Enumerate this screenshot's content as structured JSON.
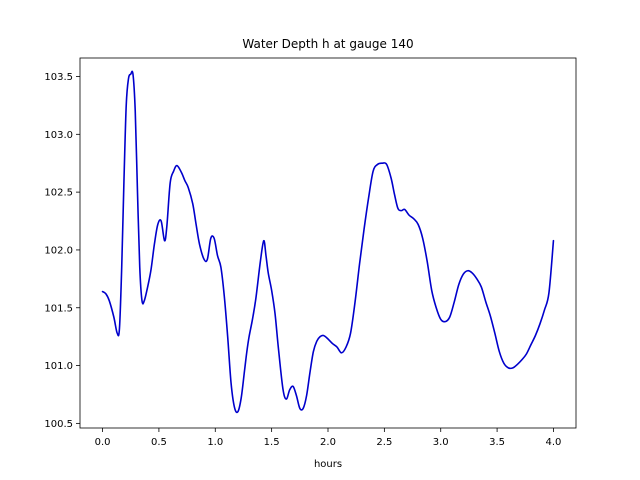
{
  "chart_data": {
    "type": "line",
    "title": "Water Depth h at gauge 140",
    "xlabel": "hours",
    "ylabel": "",
    "xlim": [
      -0.2,
      4.2
    ],
    "ylim": [
      100.46,
      103.66
    ],
    "xticks": [
      0.0,
      0.5,
      1.0,
      1.5,
      2.0,
      2.5,
      3.0,
      3.5,
      4.0
    ],
    "xtick_labels": [
      "0.0",
      "0.5",
      "1.0",
      "1.5",
      "2.0",
      "2.5",
      "3.0",
      "3.5",
      "4.0"
    ],
    "yticks": [
      100.5,
      101.0,
      101.5,
      102.0,
      102.5,
      103.0,
      103.5
    ],
    "ytick_labels": [
      "100.5",
      "101.0",
      "101.5",
      "102.0",
      "102.5",
      "103.0",
      "103.5"
    ],
    "grid": false,
    "series": [
      {
        "color": "#0000cc",
        "x": [
          0.0,
          0.03,
          0.06,
          0.1,
          0.13,
          0.15,
          0.17,
          0.19,
          0.21,
          0.23,
          0.25,
          0.27,
          0.29,
          0.31,
          0.33,
          0.35,
          0.37,
          0.4,
          0.43,
          0.46,
          0.49,
          0.52,
          0.55,
          0.57,
          0.6,
          0.63,
          0.66,
          0.7,
          0.73,
          0.76,
          0.8,
          0.83,
          0.86,
          0.9,
          0.93,
          0.96,
          0.99,
          1.02,
          1.05,
          1.08,
          1.11,
          1.14,
          1.17,
          1.2,
          1.23,
          1.26,
          1.28,
          1.3,
          1.33,
          1.36,
          1.4,
          1.43,
          1.45,
          1.47,
          1.5,
          1.53,
          1.56,
          1.6,
          1.63,
          1.66,
          1.69,
          1.72,
          1.75,
          1.78,
          1.81,
          1.84,
          1.87,
          1.9,
          1.93,
          1.96,
          2.0,
          2.04,
          2.08,
          2.12,
          2.16,
          2.2,
          2.24,
          2.28,
          2.32,
          2.36,
          2.4,
          2.44,
          2.48,
          2.52,
          2.56,
          2.59,
          2.62,
          2.65,
          2.68,
          2.72,
          2.76,
          2.8,
          2.84,
          2.88,
          2.92,
          2.96,
          3.0,
          3.04,
          3.08,
          3.12,
          3.16,
          3.2,
          3.24,
          3.28,
          3.32,
          3.36,
          3.4,
          3.44,
          3.48,
          3.52,
          3.56,
          3.6,
          3.64,
          3.68,
          3.72,
          3.76,
          3.8,
          3.84,
          3.88,
          3.92,
          3.96,
          4.0
        ],
        "y": [
          101.64,
          101.62,
          101.56,
          101.42,
          101.28,
          101.32,
          101.85,
          102.6,
          103.25,
          103.48,
          103.52,
          103.52,
          103.2,
          102.5,
          101.85,
          101.56,
          101.56,
          101.68,
          101.83,
          102.05,
          102.22,
          102.25,
          102.08,
          102.2,
          102.58,
          102.68,
          102.73,
          102.67,
          102.6,
          102.54,
          102.4,
          102.22,
          102.05,
          101.92,
          101.92,
          102.1,
          102.1,
          101.95,
          101.85,
          101.6,
          101.25,
          100.85,
          100.64,
          100.6,
          100.72,
          100.96,
          101.12,
          101.25,
          101.4,
          101.58,
          101.9,
          102.08,
          101.95,
          101.8,
          101.65,
          101.45,
          101.15,
          100.8,
          100.71,
          100.79,
          100.82,
          100.74,
          100.63,
          100.63,
          100.74,
          100.94,
          101.12,
          101.21,
          101.25,
          101.26,
          101.23,
          101.19,
          101.16,
          101.11,
          101.16,
          101.28,
          101.55,
          101.88,
          102.18,
          102.45,
          102.68,
          102.74,
          102.75,
          102.74,
          102.62,
          102.48,
          102.36,
          102.34,
          102.35,
          102.3,
          102.27,
          102.22,
          102.1,
          101.9,
          101.65,
          101.5,
          101.4,
          101.38,
          101.42,
          101.55,
          101.7,
          101.79,
          101.82,
          101.8,
          101.75,
          101.68,
          101.55,
          101.43,
          101.28,
          101.12,
          101.02,
          100.98,
          100.98,
          101.01,
          101.05,
          101.1,
          101.18,
          101.26,
          101.36,
          101.48,
          101.63,
          102.08
        ]
      }
    ]
  }
}
